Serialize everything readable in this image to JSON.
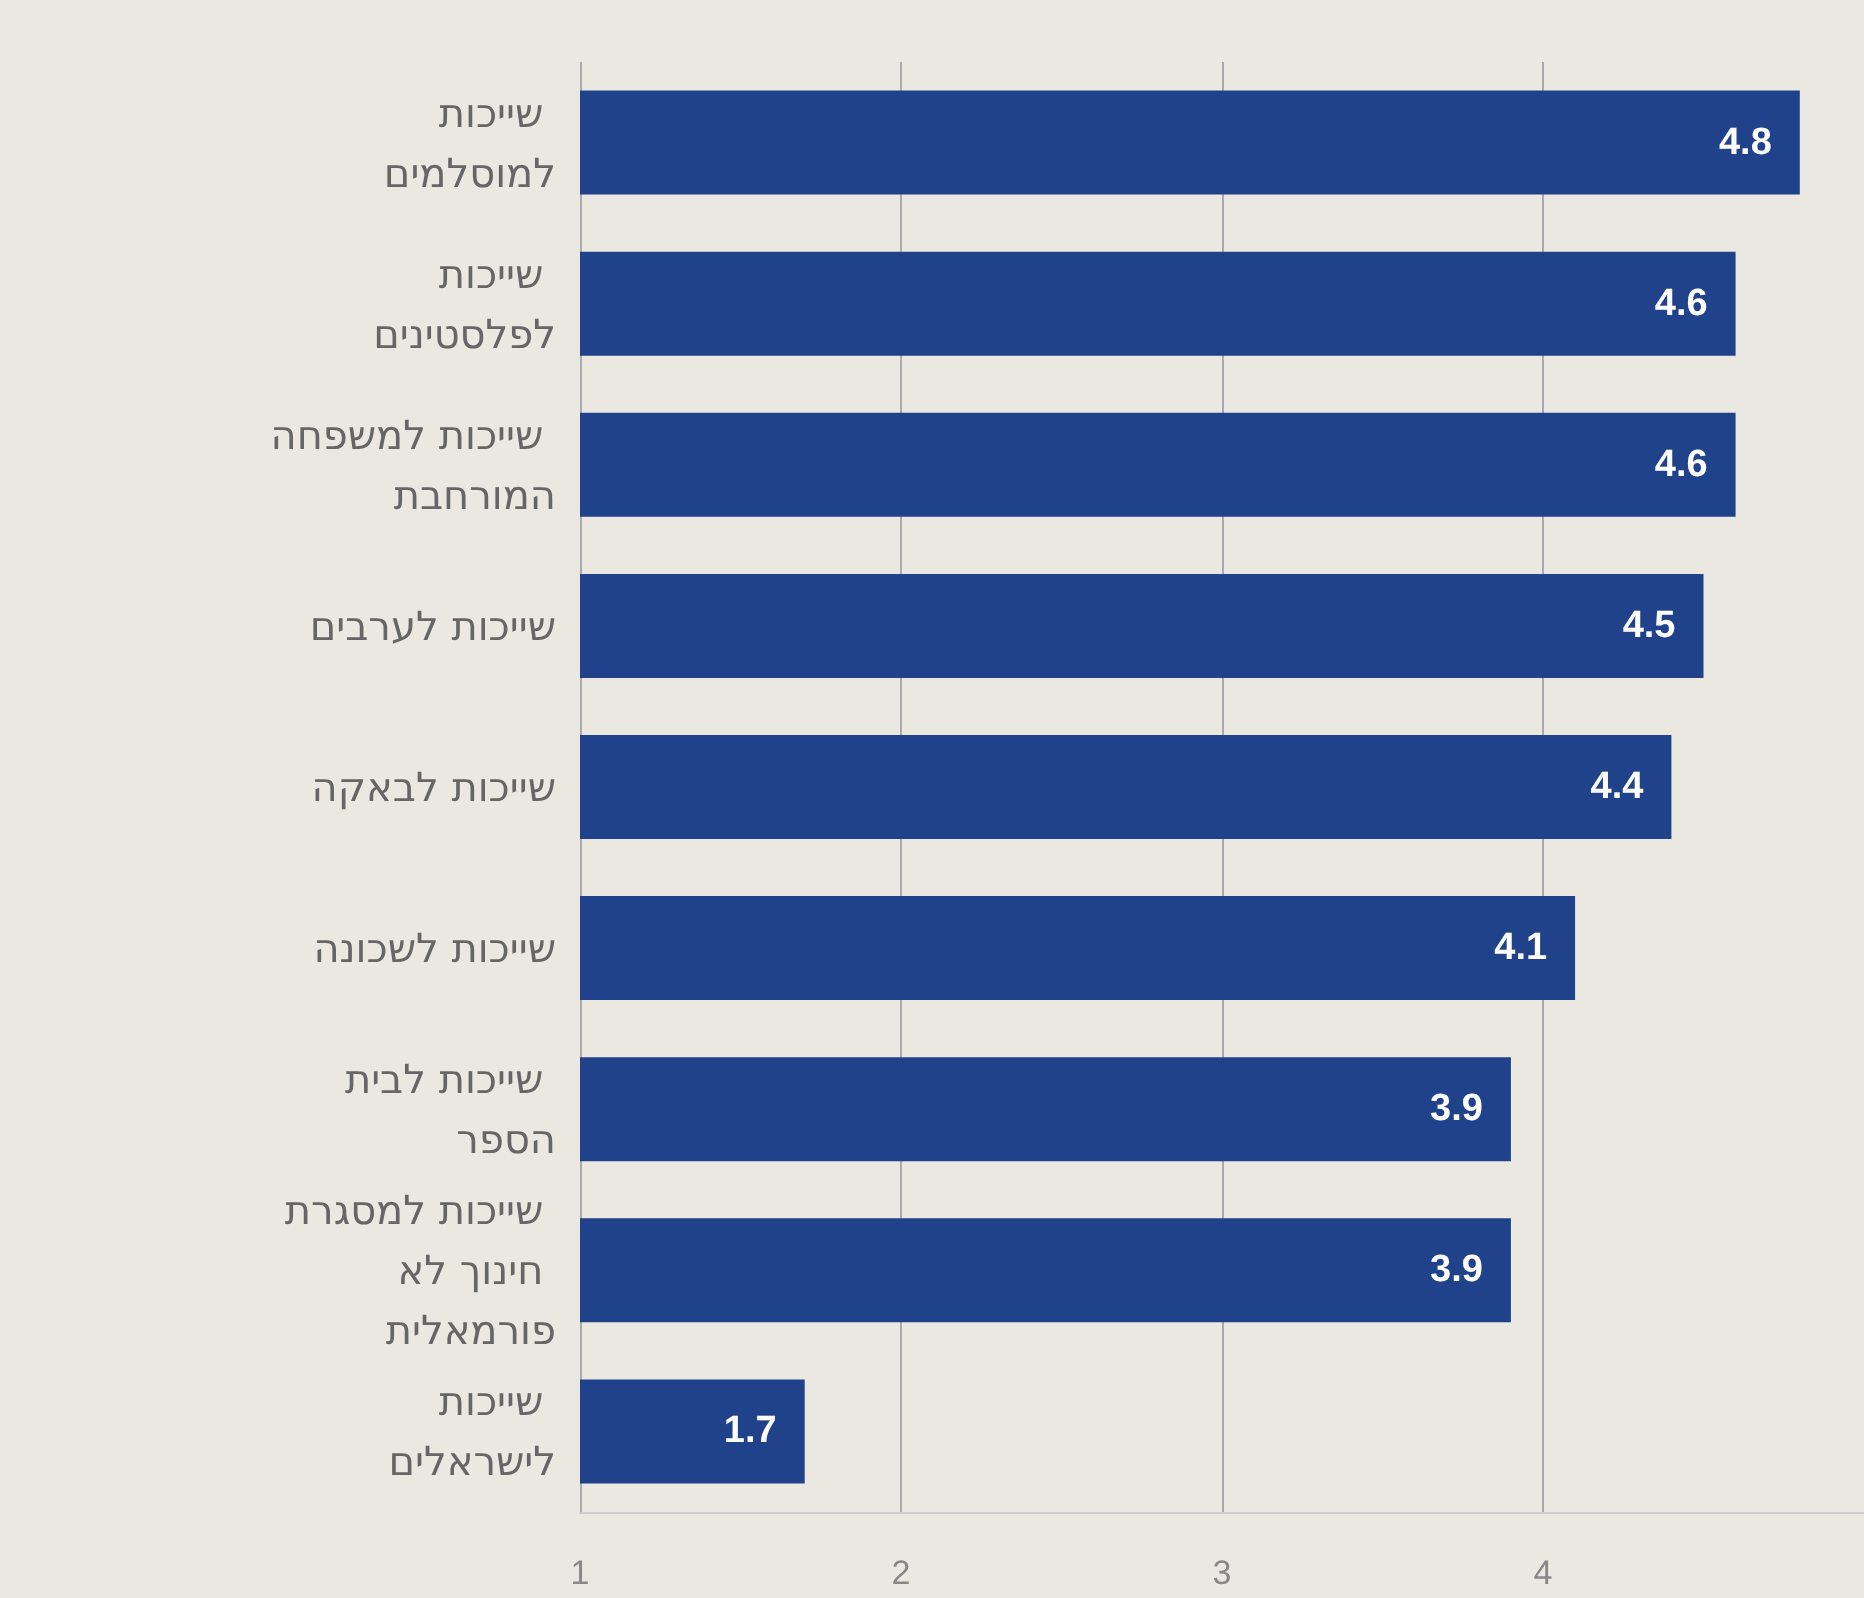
{
  "chart_data": {
    "type": "bar",
    "orientation": "horizontal",
    "categories": [
      "שייכות למוסלמים",
      "שייכות לפלסטינים",
      "שייכות למשפחה המורחבת",
      "שייכות לערבים",
      "שייכות לבאקה",
      "שייכות לשכונה",
      "שייכות לבית הספר",
      "שייכות למסגרת חינוך לא פורמאלית",
      "שייכות לישראלים"
    ],
    "values": [
      4.8,
      4.6,
      4.6,
      4.5,
      4.4,
      4.1,
      3.9,
      3.9,
      1.7
    ],
    "color": "#1f428a",
    "xlim": [
      1,
      5
    ],
    "xticks": [
      1,
      2,
      3,
      4
    ],
    "grid": "x",
    "data_labels": true
  }
}
